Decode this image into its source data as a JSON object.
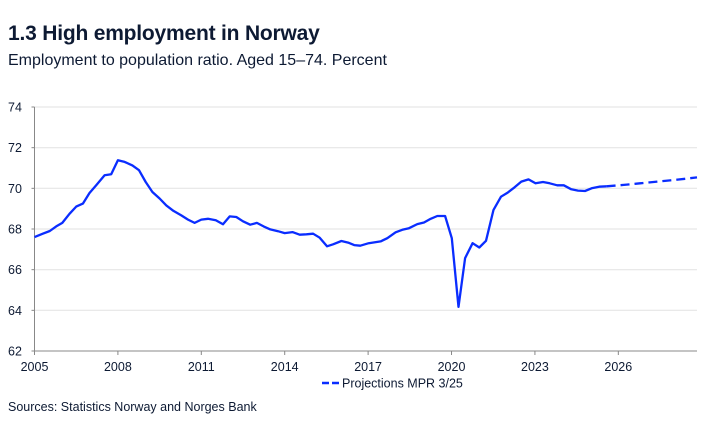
{
  "title": "1.3 High employment in Norway",
  "subtitle": "Employment to population ratio. Aged 15–74. Percent",
  "source": "Sources: Statistics Norway and Norges Bank",
  "colors": {
    "line": "#0a2dff",
    "grid": "#e6e6e6",
    "axis": "#888888",
    "text": "#0d1a33"
  },
  "chart_data": {
    "type": "line",
    "title": "1.3 High employment in Norway",
    "ylabel": "",
    "xlabel": "",
    "xlim": [
      2005,
      2028.83
    ],
    "ylim": [
      62,
      74
    ],
    "x_ticks": [
      2005,
      2008,
      2011,
      2014,
      2017,
      2020,
      2023,
      2026
    ],
    "x_tick_labels": [
      "2005",
      "2008",
      "2011",
      "2014",
      "2017",
      "2020",
      "2023",
      "2026"
    ],
    "y_ticks": [
      62,
      64,
      66,
      68,
      70,
      72,
      74
    ],
    "y_tick_labels": [
      "62",
      "64",
      "66",
      "68",
      "70",
      "72",
      "74"
    ],
    "grid": "horizontal",
    "legend": {
      "placement": "bottom-center",
      "entries": [
        "Projections MPR 3/25"
      ]
    },
    "series": [
      {
        "style": "solid",
        "points": [
          [
            2005.0,
            67.6
          ],
          [
            2005.3,
            67.77
          ],
          [
            2005.55,
            67.9
          ],
          [
            2005.78,
            68.13
          ],
          [
            2006.0,
            68.3
          ],
          [
            2006.26,
            68.75
          ],
          [
            2006.5,
            69.1
          ],
          [
            2006.74,
            69.25
          ],
          [
            2006.98,
            69.77
          ],
          [
            2007.22,
            70.15
          ],
          [
            2007.52,
            70.64
          ],
          [
            2007.76,
            70.69
          ],
          [
            2008.0,
            71.38
          ],
          [
            2008.24,
            71.3
          ],
          [
            2008.52,
            71.13
          ],
          [
            2008.76,
            70.89
          ],
          [
            2009.0,
            70.31
          ],
          [
            2009.24,
            69.82
          ],
          [
            2009.5,
            69.5
          ],
          [
            2009.74,
            69.16
          ],
          [
            2010.0,
            68.89
          ],
          [
            2010.28,
            68.67
          ],
          [
            2010.52,
            68.46
          ],
          [
            2010.76,
            68.3
          ],
          [
            2011.0,
            68.46
          ],
          [
            2011.24,
            68.5
          ],
          [
            2011.52,
            68.43
          ],
          [
            2011.78,
            68.23
          ],
          [
            2012.02,
            68.62
          ],
          [
            2012.26,
            68.59
          ],
          [
            2012.5,
            68.38
          ],
          [
            2012.76,
            68.21
          ],
          [
            2013.0,
            68.3
          ],
          [
            2013.24,
            68.13
          ],
          [
            2013.48,
            67.98
          ],
          [
            2013.76,
            67.89
          ],
          [
            2014.0,
            67.8
          ],
          [
            2014.28,
            67.85
          ],
          [
            2014.54,
            67.72
          ],
          [
            2014.78,
            67.74
          ],
          [
            2015.02,
            67.77
          ],
          [
            2015.26,
            67.57
          ],
          [
            2015.52,
            67.15
          ],
          [
            2015.74,
            67.25
          ],
          [
            2016.04,
            67.41
          ],
          [
            2016.28,
            67.33
          ],
          [
            2016.5,
            67.21
          ],
          [
            2016.72,
            67.18
          ],
          [
            2017.02,
            67.3
          ],
          [
            2017.45,
            67.39
          ],
          [
            2017.69,
            67.55
          ],
          [
            2017.99,
            67.84
          ],
          [
            2018.23,
            67.96
          ],
          [
            2018.47,
            68.04
          ],
          [
            2018.77,
            68.24
          ],
          [
            2019.01,
            68.32
          ],
          [
            2019.25,
            68.5
          ],
          [
            2019.49,
            68.64
          ],
          [
            2019.77,
            68.64
          ],
          [
            2020.01,
            67.55
          ],
          [
            2020.25,
            64.17
          ],
          [
            2020.49,
            66.57
          ],
          [
            2020.76,
            67.3
          ],
          [
            2021.0,
            67.09
          ],
          [
            2021.24,
            67.42
          ],
          [
            2021.51,
            68.94
          ],
          [
            2021.78,
            69.59
          ],
          [
            2022.02,
            69.79
          ],
          [
            2022.27,
            70.05
          ],
          [
            2022.51,
            70.33
          ],
          [
            2022.77,
            70.44
          ],
          [
            2023.02,
            70.25
          ],
          [
            2023.29,
            70.31
          ],
          [
            2023.53,
            70.25
          ],
          [
            2023.8,
            70.15
          ],
          [
            2024.04,
            70.15
          ],
          [
            2024.31,
            69.95
          ],
          [
            2024.55,
            69.89
          ],
          [
            2024.8,
            69.87
          ],
          [
            2025.04,
            70.0
          ],
          [
            2025.31,
            70.08
          ],
          [
            2025.58,
            70.1
          ]
        ]
      },
      {
        "name": "Projections MPR 3/25",
        "style": "dashed",
        "points": [
          [
            2025.58,
            70.1
          ],
          [
            2026.2,
            70.17
          ],
          [
            2026.78,
            70.25
          ],
          [
            2027.4,
            70.33
          ],
          [
            2027.99,
            70.41
          ],
          [
            2028.4,
            70.47
          ],
          [
            2028.83,
            70.54
          ]
        ]
      }
    ]
  }
}
